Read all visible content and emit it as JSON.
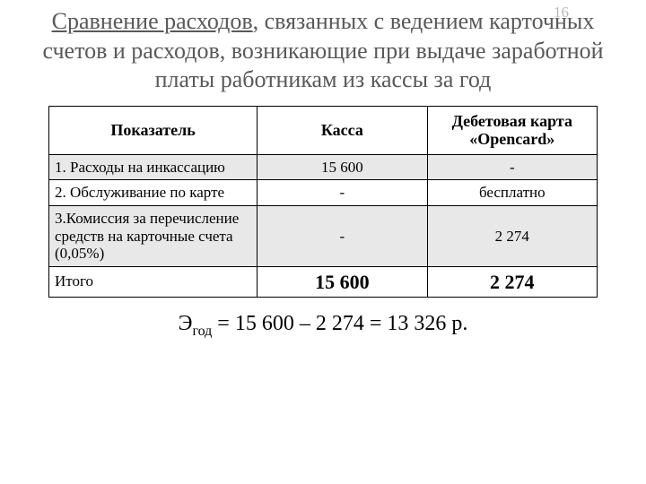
{
  "page_number": "16",
  "title": {
    "underlined": "Сравнение расходов",
    "rest": ", связанных с ведением карточных счетов и расходов, возникающие при выдаче заработной платы работникам из кассы за год"
  },
  "table": {
    "headers": [
      "Показатель",
      "Касса",
      "Дебетовая карта «Opencard»"
    ],
    "rows": [
      {
        "label": "1. Расходы на инкассацию",
        "kassa": "15 600",
        "card": "-",
        "banded": true
      },
      {
        "label": "2. Обслуживание по карте",
        "kassa": "-",
        "card": "бесплатно",
        "banded": false
      },
      {
        "label": "3.Комиссия за перечисление средств на карточные счета (0,05%)",
        "kassa": "-",
        "card": "2 274",
        "banded": true
      },
      {
        "label": "Итого",
        "kassa": "15 600",
        "card": "2 274",
        "banded": false,
        "total": true
      }
    ]
  },
  "formula": {
    "symbol": "Э",
    "subscript": "год",
    "expr": " = 15 600 – 2 274 = 13 326 р."
  }
}
